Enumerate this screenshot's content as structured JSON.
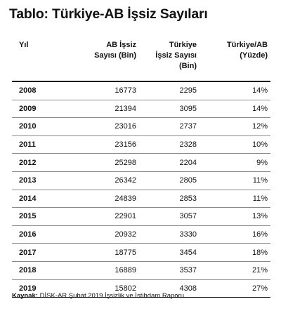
{
  "title": "Tablo: Türkiye-AB İşsiz Sayıları",
  "table": {
    "headers": [
      [
        "Yıl"
      ],
      [
        "AB İşsiz",
        "Sayısı (Bin)"
      ],
      [
        "Türkiye",
        "İşsiz Sayısı",
        "(Bin)"
      ],
      [
        "Türkiye/AB",
        "(Yüzde)"
      ]
    ],
    "rows": [
      [
        "2008",
        "16773",
        "2295",
        "14%"
      ],
      [
        "2009",
        "21394",
        "3095",
        "14%"
      ],
      [
        "2010",
        "23016",
        "2737",
        "12%"
      ],
      [
        "2011",
        "23156",
        "2328",
        "10%"
      ],
      [
        "2012",
        "25298",
        "2204",
        "9%"
      ],
      [
        "2013",
        "26342",
        "2805",
        "11%"
      ],
      [
        "2014",
        "24839",
        "2853",
        "11%"
      ],
      [
        "2015",
        "22901",
        "3057",
        "13%"
      ],
      [
        "2016",
        "20932",
        "3330",
        "16%"
      ],
      [
        "2017",
        "18775",
        "3454",
        "18%"
      ],
      [
        "2018",
        "16889",
        "3537",
        "21%"
      ],
      [
        "2019",
        "15802",
        "4308",
        "27%"
      ]
    ]
  },
  "source": {
    "label": "Kaynak:",
    "text": " DİSK-AR Şubat 2019 İşsizlik ve İstihdam Raporu"
  }
}
